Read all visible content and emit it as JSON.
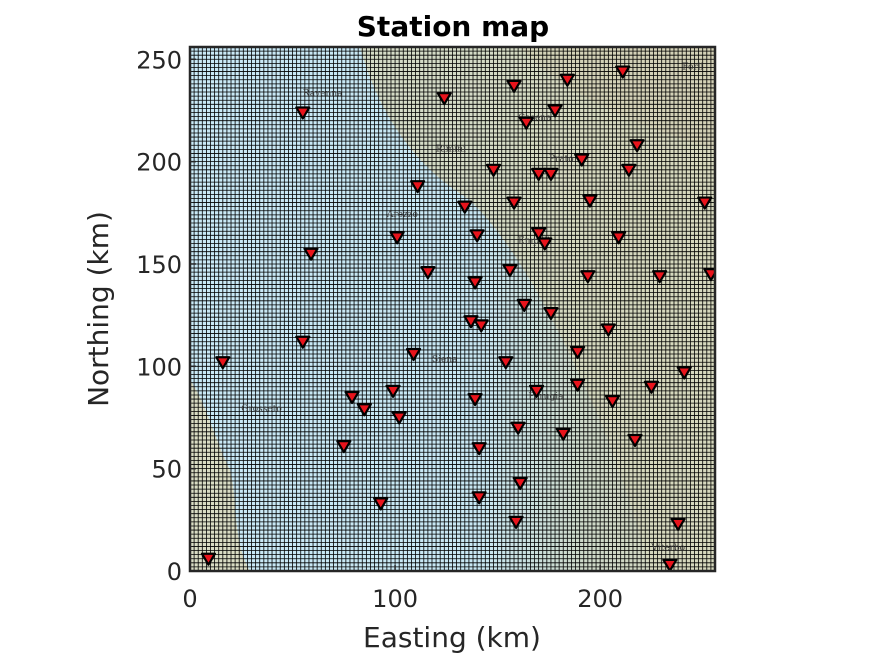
{
  "chart_data": {
    "type": "scatter",
    "title": "Station map",
    "xlabel": "Easting (km)",
    "ylabel": "Northing (km)",
    "xlim": [
      0,
      256
    ],
    "ylim": [
      0,
      256
    ],
    "xticks": [
      0,
      100,
      200
    ],
    "yticks": [
      0,
      50,
      100,
      150,
      200,
      250
    ],
    "grid": true,
    "background": "topographic basemap (blue sea to the west, green/tan land to the east)",
    "marker": {
      "shape": "inverted-triangle",
      "fill": "#e8141c",
      "edge": "#000000"
    },
    "place_labels": [
      "Forli",
      "Ravenna",
      "Cesena",
      "Rimini",
      "Prato",
      "Arezzo",
      "Empoli",
      "Siena",
      "Perugia",
      "Grosseto",
      "Viterbo"
    ],
    "stations": [
      {
        "x": 9,
        "y": 6
      },
      {
        "x": 16,
        "y": 102
      },
      {
        "x": 55,
        "y": 224
      },
      {
        "x": 59,
        "y": 155
      },
      {
        "x": 55,
        "y": 112
      },
      {
        "x": 75,
        "y": 61
      },
      {
        "x": 79,
        "y": 85
      },
      {
        "x": 85,
        "y": 79
      },
      {
        "x": 93,
        "y": 33
      },
      {
        "x": 99,
        "y": 88
      },
      {
        "x": 101,
        "y": 163
      },
      {
        "x": 102,
        "y": 75
      },
      {
        "x": 109,
        "y": 106
      },
      {
        "x": 111,
        "y": 188
      },
      {
        "x": 116,
        "y": 146
      },
      {
        "x": 124,
        "y": 231
      },
      {
        "x": 134,
        "y": 178
      },
      {
        "x": 137,
        "y": 122
      },
      {
        "x": 139,
        "y": 141
      },
      {
        "x": 139,
        "y": 84
      },
      {
        "x": 140,
        "y": 164
      },
      {
        "x": 141,
        "y": 60
      },
      {
        "x": 141,
        "y": 36
      },
      {
        "x": 142,
        "y": 120
      },
      {
        "x": 148,
        "y": 196
      },
      {
        "x": 154,
        "y": 102
      },
      {
        "x": 156,
        "y": 147
      },
      {
        "x": 158,
        "y": 180
      },
      {
        "x": 158,
        "y": 237
      },
      {
        "x": 159,
        "y": 24
      },
      {
        "x": 160,
        "y": 70
      },
      {
        "x": 161,
        "y": 43
      },
      {
        "x": 163,
        "y": 130
      },
      {
        "x": 164,
        "y": 219
      },
      {
        "x": 169,
        "y": 88
      },
      {
        "x": 170,
        "y": 165
      },
      {
        "x": 170,
        "y": 194
      },
      {
        "x": 173,
        "y": 160
      },
      {
        "x": 176,
        "y": 126
      },
      {
        "x": 176,
        "y": 194
      },
      {
        "x": 178,
        "y": 225
      },
      {
        "x": 182,
        "y": 67
      },
      {
        "x": 184,
        "y": 240
      },
      {
        "x": 189,
        "y": 107
      },
      {
        "x": 189,
        "y": 91
      },
      {
        "x": 191,
        "y": 201
      },
      {
        "x": 194,
        "y": 144
      },
      {
        "x": 195,
        "y": 181
      },
      {
        "x": 204,
        "y": 118
      },
      {
        "x": 206,
        "y": 83
      },
      {
        "x": 209,
        "y": 163
      },
      {
        "x": 211,
        "y": 244
      },
      {
        "x": 214,
        "y": 196
      },
      {
        "x": 217,
        "y": 64
      },
      {
        "x": 218,
        "y": 208
      },
      {
        "x": 225,
        "y": 90
      },
      {
        "x": 229,
        "y": 144
      },
      {
        "x": 234,
        "y": 3
      },
      {
        "x": 238,
        "y": 23
      },
      {
        "x": 241,
        "y": 97
      },
      {
        "x": 251,
        "y": 180
      },
      {
        "x": 254,
        "y": 145
      }
    ]
  }
}
